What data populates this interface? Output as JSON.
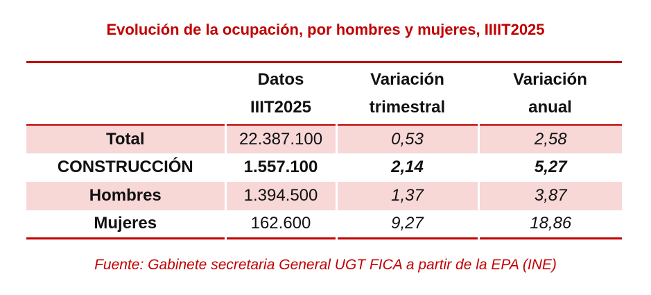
{
  "title": "Evolución de la ocupación, por hombres y mujeres, IIIIT2025",
  "table": {
    "header": [
      [],
      [
        "Datos",
        "IIIT2025"
      ],
      [
        "Variación",
        "trimestral"
      ],
      [
        "Variación",
        "anual"
      ]
    ],
    "rows": [
      [
        "Total",
        "22.387.100",
        "0,53",
        "2,58"
      ],
      [
        "CONSTRUCCIÓN",
        "1.557.100",
        "2,14",
        "5,27"
      ],
      [
        "Hombres",
        "1.394.500",
        "1,37",
        "3,87"
      ],
      [
        "Mujeres",
        "162.600",
        "9,27",
        "18,86"
      ]
    ]
  },
  "source": "Fuente: Gabinete secretaria General UGT FICA a partir de la EPA (INE)"
}
